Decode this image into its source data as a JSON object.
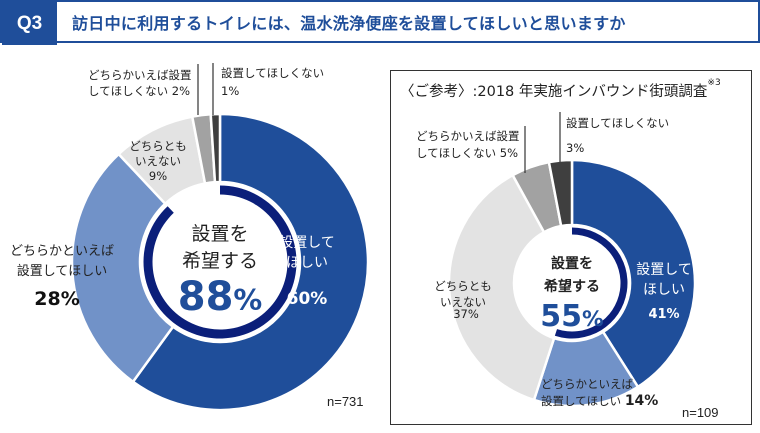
{
  "header": {
    "q_label": "Q3",
    "title": "訪日中に利用するトイレには、温水洗浄便座を設置してほしいと思いますか"
  },
  "colors": {
    "brand": "#1F4E9A",
    "want": "#1F4E9A",
    "somewhat_want": "#7192C8",
    "neutral": "#E3E3E3",
    "somewhat_not": "#A2A2A2",
    "not_want": "#3F3F3F",
    "ring": "#0B1F7A",
    "center_pct": "#1F4E9A"
  },
  "chart_data": [
    {
      "type": "pie",
      "variant": "donut",
      "title": "",
      "sample_size_label": "n=731",
      "center": {
        "line1": "設置を",
        "line2": "希望する",
        "value": "88",
        "unit": "%",
        "ring_fraction": 0.88
      },
      "slices": [
        {
          "key": "want",
          "label_lines": [
            "設置して",
            "ほしい"
          ],
          "value": 60,
          "value_label": "60%"
        },
        {
          "key": "somewhat_want",
          "label_lines": [
            "どちらかといえば",
            "設置してほしい"
          ],
          "value": 28,
          "value_label": "28%"
        },
        {
          "key": "neutral",
          "label_lines": [
            "どちらとも",
            "いえない"
          ],
          "value": 9,
          "value_label": "9%"
        },
        {
          "key": "somewhat_not",
          "label_lines": [
            "どちらかいえば設置",
            "してほしくない"
          ],
          "value": 2,
          "value_label": "2%"
        },
        {
          "key": "not_want",
          "label_lines": [
            "設置してほしくない"
          ],
          "value": 1,
          "value_label": "1%"
        }
      ]
    },
    {
      "type": "pie",
      "variant": "donut",
      "title": "〈ご参考〉:2018 年実施インバウンド街頭調査",
      "title_note": "※3",
      "sample_size_label": "n=109",
      "center": {
        "line1": "設置を",
        "line2": "希望する",
        "value": "55",
        "unit": "%",
        "ring_fraction": 0.55
      },
      "slices": [
        {
          "key": "want",
          "label_lines": [
            "設置して",
            "ほしい"
          ],
          "value": 41,
          "value_label": "41%"
        },
        {
          "key": "somewhat_want",
          "label_lines": [
            "どちらかといえば",
            "設置してほしい"
          ],
          "value": 14,
          "value_label": "14%"
        },
        {
          "key": "neutral",
          "label_lines": [
            "どちらとも",
            "いえない"
          ],
          "value": 37,
          "value_label": "37%"
        },
        {
          "key": "somewhat_not",
          "label_lines": [
            "どちらかいえば設置",
            "してほしくない"
          ],
          "value": 5,
          "value_label": "5%"
        },
        {
          "key": "not_want",
          "label_lines": [
            "設置してほしくない"
          ],
          "value": 3,
          "value_label": "3%"
        }
      ]
    }
  ]
}
